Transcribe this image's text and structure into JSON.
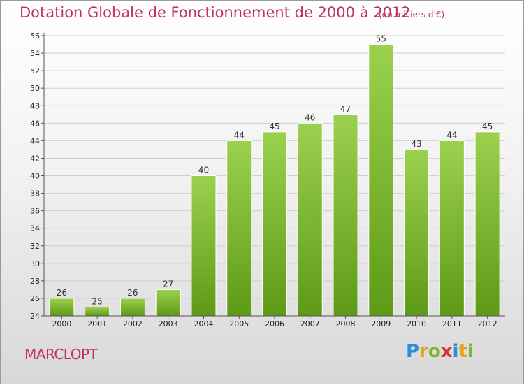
{
  "header": {
    "title": "Dotation Globale de Fonctionnement de 2000 à 2012",
    "subtitle": "(en milliers d'€)"
  },
  "footer": {
    "commune": "MARCLOPT",
    "logo_letters": [
      "P",
      "r",
      "o",
      "x",
      "i",
      "t",
      "i"
    ],
    "logo_colors": [
      "#2a8fd6",
      "#e8a21a",
      "#7ab52e",
      "#d9362f",
      "#2a8fd6",
      "#e8a21a",
      "#7ab52e"
    ]
  },
  "chart_data": {
    "type": "bar",
    "title": "Dotation Globale de Fonctionnement de 2000 à 2012",
    "subtitle": "(en milliers d'€)",
    "categories": [
      "2000",
      "2001",
      "2002",
      "2003",
      "2004",
      "2005",
      "2006",
      "2007",
      "2008",
      "2009",
      "2010",
      "2011",
      "2012"
    ],
    "values": [
      26,
      25,
      26,
      27,
      40,
      44,
      45,
      46,
      47,
      55,
      43,
      44,
      45
    ],
    "ylim": [
      24,
      56
    ],
    "yticks": [
      24,
      26,
      28,
      30,
      32,
      34,
      36,
      38,
      40,
      42,
      44,
      46,
      48,
      50,
      52,
      54,
      56
    ],
    "grid": true,
    "data_labels": true,
    "bar_color": "#8cc63f",
    "bar_color_dark": "#5e9a17"
  }
}
